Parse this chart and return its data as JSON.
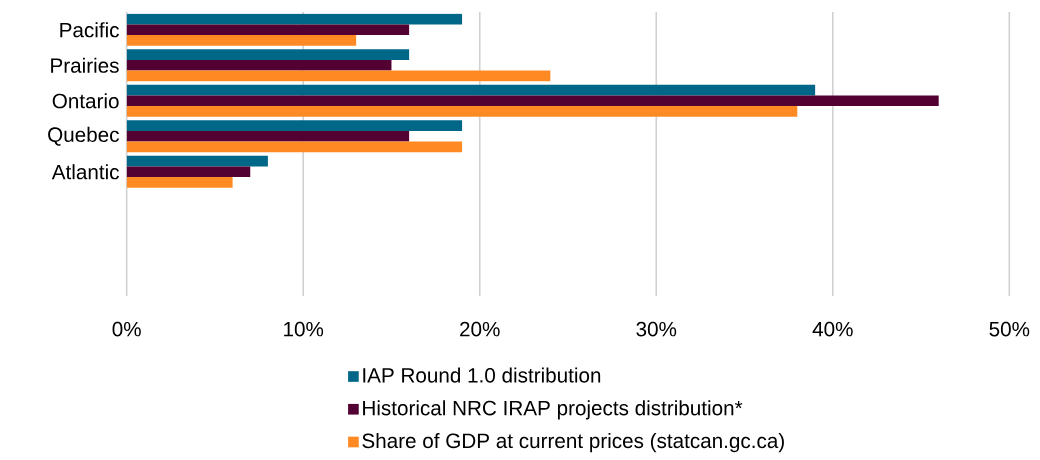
{
  "chart_data": {
    "type": "bar",
    "orientation": "horizontal",
    "categories": [
      "Pacific",
      "Prairies",
      "Ontario",
      "Quebec",
      "Atlantic",
      null,
      null,
      null
    ],
    "series": [
      {
        "name": "IAP Round 1.0 distribution",
        "color": "#006788",
        "values": [
          19,
          16,
          39,
          19,
          8,
          null,
          null,
          null
        ]
      },
      {
        "name": "Historical NRC IRAP projects distribution*",
        "color": "#530033",
        "values": [
          16,
          15,
          46,
          16,
          7,
          null,
          null,
          null
        ]
      },
      {
        "name": "Share of GDP at current prices (statcan.gc.ca)",
        "color": "#ff8a24",
        "values": [
          13,
          24,
          38,
          19,
          6,
          null,
          null,
          null
        ]
      }
    ],
    "xlim": [
      0,
      50
    ],
    "xticks": [
      {
        "value": 0,
        "label": "0%"
      },
      {
        "value": 10,
        "label": "10%"
      },
      {
        "value": 20,
        "label": "20%"
      },
      {
        "value": 30,
        "label": "30%"
      },
      {
        "value": 40,
        "label": "40%"
      },
      {
        "value": 50,
        "label": "50%"
      }
    ],
    "grid": "x",
    "legend": "bottom"
  }
}
